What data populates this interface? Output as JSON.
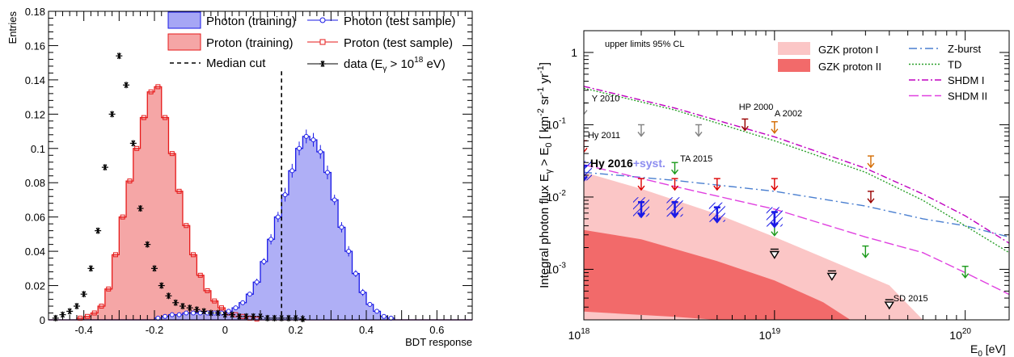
{
  "chart_data": [
    {
      "type": "histogram",
      "ylabel": "Entries",
      "xlabel": "BDT response",
      "xlim": [
        -0.5,
        0.7
      ],
      "ylim": [
        0,
        0.18
      ],
      "x_ticks": [
        "-0.4",
        "-0.2",
        "0",
        "0.2",
        "0.4",
        "0.6"
      ],
      "y_ticks": [
        "0",
        "0.02",
        "0.04",
        "0.06",
        "0.08",
        "0.1",
        "0.12",
        "0.14",
        "0.16",
        "0.18"
      ],
      "legend": [
        {
          "key": "photon_train",
          "label": "Photon (training)"
        },
        {
          "key": "photon_test",
          "label": "Photon (test sample)"
        },
        {
          "key": "proton_train",
          "label": "Proton (training)"
        },
        {
          "key": "proton_test",
          "label": "Proton (test sample)"
        },
        {
          "key": "median",
          "label": "Median cut"
        },
        {
          "key": "data",
          "label": "data (E",
          "sub": "γ",
          "tail": " > 10",
          "sup": "18",
          "end": " eV)"
        }
      ],
      "median_cut": 0.16,
      "colors": {
        "photon_fill": "#a6a6f5",
        "photon_line": "#1a1ae6",
        "proton_fill": "#f5a6a6",
        "proton_line": "#e61a1a"
      },
      "bin_edges_start": -0.5,
      "bin_width": 0.02,
      "proton": [
        0,
        0,
        0,
        0,
        0.001,
        0.002,
        0.004,
        0.008,
        0.018,
        0.038,
        0.06,
        0.081,
        0.1,
        0.118,
        0.133,
        0.136,
        0.118,
        0.097,
        0.075,
        0.055,
        0.038,
        0.026,
        0.017,
        0.011,
        0.007,
        0.004,
        0.003,
        0.002,
        0.001,
        0.0005,
        0,
        0,
        0,
        0,
        0,
        0,
        0,
        0,
        0,
        0,
        0,
        0,
        0,
        0,
        0,
        0,
        0,
        0,
        0,
        0,
        0,
        0,
        0,
        0,
        0,
        0,
        0,
        0,
        0,
        0
      ],
      "photon": [
        0,
        0,
        0,
        0,
        0,
        0,
        0,
        0,
        0,
        0,
        0,
        0,
        0,
        0,
        0,
        0.001,
        0.002,
        0.003,
        0.003,
        0.004,
        0.004,
        0.004,
        0.004,
        0.004,
        0.004,
        0.005,
        0.007,
        0.01,
        0.015,
        0.022,
        0.034,
        0.047,
        0.06,
        0.073,
        0.087,
        0.1,
        0.107,
        0.105,
        0.098,
        0.086,
        0.07,
        0.054,
        0.04,
        0.027,
        0.016,
        0.009,
        0.005,
        0.002,
        0.001,
        0,
        0,
        0,
        0,
        0,
        0,
        0,
        0,
        0,
        0,
        0
      ],
      "photon_test_err": [
        0,
        0,
        0,
        0,
        0,
        0,
        0,
        0,
        0,
        0,
        0,
        0,
        0,
        0,
        0,
        0,
        0,
        0,
        0,
        0,
        0,
        0,
        0,
        0,
        0,
        0,
        0,
        0,
        0,
        0.002,
        0.002,
        0.003,
        0.003,
        0.004,
        0.004,
        0.004,
        0.004,
        0.004,
        0.004,
        0.004,
        0.003,
        0.003,
        0.003,
        0.002,
        0.002,
        0,
        0,
        0,
        0,
        0,
        0,
        0,
        0,
        0,
        0,
        0,
        0,
        0,
        0,
        0
      ],
      "data_points": [
        {
          "x": -0.48,
          "y": 0.001
        },
        {
          "x": -0.46,
          "y": 0.003
        },
        {
          "x": -0.44,
          "y": 0.005
        },
        {
          "x": -0.42,
          "y": 0.008
        },
        {
          "x": -0.4,
          "y": 0.015
        },
        {
          "x": -0.38,
          "y": 0.03
        },
        {
          "x": -0.36,
          "y": 0.052
        },
        {
          "x": -0.34,
          "y": 0.089
        },
        {
          "x": -0.32,
          "y": 0.12
        },
        {
          "x": -0.3,
          "y": 0.154
        },
        {
          "x": -0.28,
          "y": 0.137
        },
        {
          "x": -0.26,
          "y": 0.103
        },
        {
          "x": -0.24,
          "y": 0.065
        },
        {
          "x": -0.22,
          "y": 0.044
        },
        {
          "x": -0.2,
          "y": 0.03
        },
        {
          "x": -0.18,
          "y": 0.02
        },
        {
          "x": -0.16,
          "y": 0.014
        },
        {
          "x": -0.14,
          "y": 0.01
        },
        {
          "x": -0.12,
          "y": 0.008
        },
        {
          "x": -0.1,
          "y": 0.007
        },
        {
          "x": -0.08,
          "y": 0.006
        },
        {
          "x": -0.06,
          "y": 0.005
        },
        {
          "x": -0.04,
          "y": 0.004
        },
        {
          "x": -0.02,
          "y": 0.004
        },
        {
          "x": 0.0,
          "y": 0.003
        },
        {
          "x": 0.02,
          "y": 0.003
        },
        {
          "x": 0.04,
          "y": 0.002
        },
        {
          "x": 0.06,
          "y": 0.002
        },
        {
          "x": 0.08,
          "y": 0.002
        },
        {
          "x": 0.1,
          "y": 0.002
        },
        {
          "x": 0.12,
          "y": 0.001
        },
        {
          "x": 0.14,
          "y": 0.001
        },
        {
          "x": 0.16,
          "y": 0.001
        },
        {
          "x": 0.18,
          "y": 0.001
        },
        {
          "x": 0.2,
          "y": 0.001
        },
        {
          "x": 0.22,
          "y": 0.0005
        }
      ]
    },
    {
      "type": "line",
      "log_x": true,
      "log_y": true,
      "xlabel": "E",
      "xlabel_sub": "0",
      "xlabel_unit": " [eV]",
      "ylabel": "Integral photon flux E",
      "ylabel_sub1": "γ",
      "ylabel_mid": " > E",
      "ylabel_sub2": "0",
      "ylabel_unit": " [ km",
      "ylabel_sup1": "-2",
      "ylabel_u2": " sr",
      "ylabel_sup2": "-1",
      "ylabel_u3": " yr",
      "ylabel_sup3": "-1",
      "ylabel_end": "]",
      "xlim": [
        1e+18,
        1.7e+20
      ],
      "ylim": [
        0.0002,
        2
      ],
      "x_ticks": [
        {
          "base": "10",
          "exp": "18",
          "v": 1e+18
        },
        {
          "base": "10",
          "exp": "19",
          "v": 1e+19
        },
        {
          "base": "10",
          "exp": "20",
          "v": 1e+20
        }
      ],
      "y_ticks": [
        {
          "label": "1",
          "v": 1
        },
        {
          "base": "10",
          "exp": "-1",
          "v": 0.1
        },
        {
          "base": "10",
          "exp": "-2",
          "v": 0.01
        },
        {
          "base": "10",
          "exp": "-3",
          "v": 0.001
        }
      ],
      "annotation": "upper limits 95% CL",
      "legend": [
        {
          "label": "GZK proton I",
          "color": "#fbc6c6"
        },
        {
          "label": "GZK proton II",
          "color": "#f26a6a"
        },
        {
          "label": "Z-burst",
          "color": "#4a7fd0"
        },
        {
          "label": "TD",
          "color": "#2aa02a"
        },
        {
          "label": "SHDM I",
          "color": "#c000c0"
        },
        {
          "label": "SHDM II",
          "color": "#e040e0"
        }
      ],
      "gzk1_upper": [
        {
          "x": 1e+18,
          "y": 0.022
        },
        {
          "x": 2e+18,
          "y": 0.013
        },
        {
          "x": 5e+18,
          "y": 0.0058
        },
        {
          "x": 1e+19,
          "y": 0.0028
        },
        {
          "x": 2e+19,
          "y": 0.0013
        },
        {
          "x": 4e+19,
          "y": 0.0006
        },
        {
          "x": 6e+19,
          "y": 0.0002
        }
      ],
      "gzk2_upper": [
        {
          "x": 1e+18,
          "y": 0.0035
        },
        {
          "x": 2e+18,
          "y": 0.0026
        },
        {
          "x": 5e+18,
          "y": 0.0013
        },
        {
          "x": 1e+19,
          "y": 0.0007
        },
        {
          "x": 1.8e+19,
          "y": 0.00035
        },
        {
          "x": 2.5e+19,
          "y": 0.0002
        }
      ],
      "gzk2_lower_band": [
        {
          "x": 1e+18,
          "y": 0.00026
        },
        {
          "x": 3e+18,
          "y": 0.00022
        },
        {
          "x": 5e+18,
          "y": 0.0002
        }
      ],
      "models": [
        {
          "name": "Z-burst",
          "color": "#4a7fd0",
          "dash": "10,4,2,4",
          "points": [
            {
              "x": 1e+18,
              "y": 0.022
            },
            {
              "x": 3e+18,
              "y": 0.017
            },
            {
              "x": 1e+19,
              "y": 0.012
            },
            {
              "x": 3e+19,
              "y": 0.0075
            },
            {
              "x": 6e+19,
              "y": 0.005
            },
            {
              "x": 1e+20,
              "y": 0.004
            },
            {
              "x": 1.7e+20,
              "y": 0.0028
            }
          ]
        },
        {
          "name": "TD",
          "color": "#2aa02a",
          "dash": "2,2",
          "points": [
            {
              "x": 1e+18,
              "y": 0.32
            },
            {
              "x": 3e+18,
              "y": 0.16
            },
            {
              "x": 1e+19,
              "y": 0.06
            },
            {
              "x": 3e+19,
              "y": 0.022
            },
            {
              "x": 6e+19,
              "y": 0.009
            },
            {
              "x": 1e+20,
              "y": 0.004
            },
            {
              "x": 1.7e+20,
              "y": 0.0017
            }
          ]
        },
        {
          "name": "SHDM I",
          "color": "#c000c0",
          "dash": "8,3,2,3",
          "points": [
            {
              "x": 1e+18,
              "y": 0.34
            },
            {
              "x": 3e+18,
              "y": 0.17
            },
            {
              "x": 1e+19,
              "y": 0.068
            },
            {
              "x": 3e+19,
              "y": 0.025
            },
            {
              "x": 6e+19,
              "y": 0.011
            },
            {
              "x": 1e+20,
              "y": 0.0055
            },
            {
              "x": 1.7e+20,
              "y": 0.0023
            }
          ]
        },
        {
          "name": "SHDM II",
          "color": "#e040e0",
          "dash": "12,4",
          "points": [
            {
              "x": 1e+18,
              "y": 0.028
            },
            {
              "x": 3e+18,
              "y": 0.014
            },
            {
              "x": 1e+19,
              "y": 0.0068
            },
            {
              "x": 3e+19,
              "y": 0.0028
            },
            {
              "x": 6e+19,
              "y": 0.0017
            },
            {
              "x": 1e+20,
              "y": 0.0009
            },
            {
              "x": 1.7e+20,
              "y": 0.00045
            }
          ]
        }
      ],
      "limits": [
        {
          "label": "Y 2010",
          "color": "#808080",
          "points": [
            {
              "x": 1e+18,
              "y": 0.2
            },
            {
              "x": 2e+18,
              "y": 0.1
            },
            {
              "x": 4e+18,
              "y": 0.1
            }
          ]
        },
        {
          "label": "HP 2000",
          "color": "#990000",
          "points": [
            {
              "x": 7e+18,
              "y": 0.12
            },
            {
              "x": 3.2e+19,
              "y": 0.012
            }
          ]
        },
        {
          "label": "A 2002",
          "color": "#d46b00",
          "points": [
            {
              "x": 1e+19,
              "y": 0.11
            },
            {
              "x": 3.2e+19,
              "y": 0.037
            }
          ]
        },
        {
          "label": "Hy 2011",
          "color": "#dd0000",
          "points": [
            {
              "x": 1e+18,
              "y": 0.06
            },
            {
              "x": 2e+18,
              "y": 0.018
            },
            {
              "x": 3e+18,
              "y": 0.018
            },
            {
              "x": 5e+18,
              "y": 0.018
            },
            {
              "x": 1e+19,
              "y": 0.018
            }
          ]
        },
        {
          "label": "TA 2015",
          "color": "#1a9a1a",
          "points": [
            {
              "x": 3e+18,
              "y": 0.03
            },
            {
              "x": 1e+19,
              "y": 0.0042
            },
            {
              "x": 3e+19,
              "y": 0.0021
            },
            {
              "x": 1e+20,
              "y": 0.0011
            }
          ]
        },
        {
          "label": "SD 2015",
          "color": "#000000",
          "points": [
            {
              "x": 1e+19,
              "y": 0.0019
            },
            {
              "x": 2e+19,
              "y": 0.00095
            },
            {
              "x": 4e+19,
              "y": 0.00038
            }
          ]
        },
        {
          "label": "Hy 2016",
          "label2": "+syst.",
          "color": "#1a1ae6",
          "points": [
            {
              "x": 1e+18,
              "y": 0.027
            },
            {
              "x": 2e+18,
              "y": 0.0085
            },
            {
              "x": 3e+18,
              "y": 0.0085
            },
            {
              "x": 5e+18,
              "y": 0.0072
            },
            {
              "x": 1e+19,
              "y": 0.0062
            }
          ]
        }
      ]
    }
  ]
}
